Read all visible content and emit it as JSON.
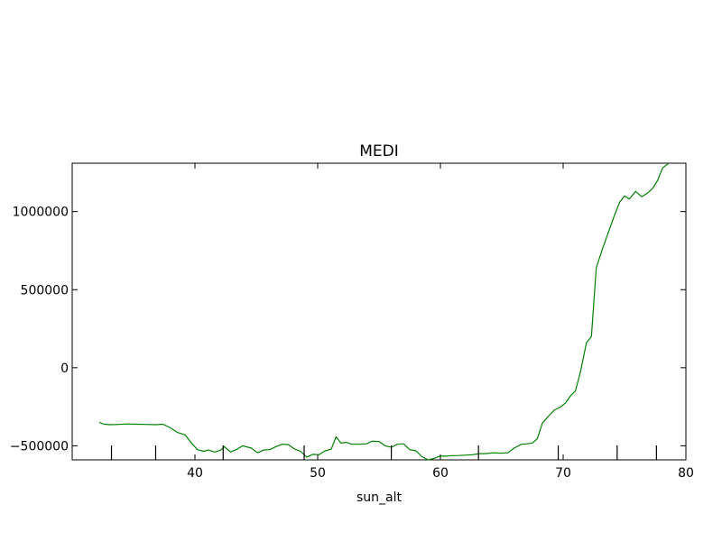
{
  "chart_data": {
    "type": "line",
    "title": "MEDI",
    "xlabel": "sun_alt",
    "ylabel": "",
    "xlim": [
      30,
      80
    ],
    "ylim": [
      -590000,
      1310000
    ],
    "x_ticks": [
      40,
      50,
      60,
      70,
      80
    ],
    "y_ticks": [
      -500000,
      0,
      500000,
      1000000
    ],
    "x_tick_labels": [
      "40",
      "50",
      "60",
      "70",
      "80"
    ],
    "y_tick_labels": [
      "−500000",
      "0",
      "500000",
      "1000000"
    ],
    "rug_x": [
      33.2,
      36.8,
      42.3,
      48.9,
      56.0,
      63.1,
      69.6,
      74.4,
      77.6
    ],
    "grid": false,
    "legend": "none",
    "series": [
      {
        "color": "#008000",
        "x": [
          32.2,
          32.6,
          33.1,
          33.8,
          34.5,
          35.3,
          36.0,
          36.8,
          37.4,
          38.0,
          38.6,
          39.2,
          39.7,
          40.2,
          40.7,
          41.1,
          41.6,
          42.1,
          42.4,
          42.9,
          43.4,
          43.9,
          44.6,
          45.1,
          45.6,
          46.1,
          46.6,
          47.1,
          47.6,
          48.1,
          48.6,
          49.1,
          49.6,
          50.1,
          50.6,
          51.1,
          51.5,
          51.9,
          52.3,
          52.8,
          53.4,
          54.0,
          54.4,
          55.0,
          55.5,
          56.0,
          56.5,
          57.0,
          57.5,
          58.0,
          58.5,
          59.0,
          59.5,
          60.0,
          60.4,
          60.9,
          61.5,
          62.0,
          62.6,
          63.2,
          63.7,
          64.3,
          64.9,
          65.5,
          66.0,
          66.6,
          67.1,
          67.5,
          67.9,
          68.3,
          68.8,
          69.3,
          69.8,
          70.2,
          70.6,
          71.0,
          71.4,
          71.9,
          72.3,
          72.7,
          73.2,
          73.7,
          74.2,
          74.6,
          75.0,
          75.4,
          75.9,
          76.4,
          76.9,
          77.3,
          77.7,
          78.1,
          78.6
        ],
        "y": [
          -350000,
          -362000,
          -365000,
          -363000,
          -360000,
          -362000,
          -363000,
          -365000,
          -362000,
          -385000,
          -415000,
          -430000,
          -480000,
          -525000,
          -535000,
          -527000,
          -540000,
          -528000,
          -505000,
          -540000,
          -523000,
          -500000,
          -515000,
          -545000,
          -527000,
          -525000,
          -505000,
          -490000,
          -492000,
          -520000,
          -535000,
          -572000,
          -555000,
          -557000,
          -532000,
          -522000,
          -442000,
          -483000,
          -478000,
          -490000,
          -490000,
          -487000,
          -471000,
          -472000,
          -500000,
          -510000,
          -490000,
          -487000,
          -525000,
          -532000,
          -570000,
          -590000,
          -580000,
          -565000,
          -567000,
          -563000,
          -562000,
          -560000,
          -557000,
          -550000,
          -550000,
          -545000,
          -547000,
          -545000,
          -515000,
          -490000,
          -487000,
          -482000,
          -455000,
          -355000,
          -310000,
          -270000,
          -250000,
          -225000,
          -180000,
          -148000,
          -30000,
          160000,
          200000,
          640000,
          760000,
          870000,
          980000,
          1060000,
          1100000,
          1080000,
          1130000,
          1095000,
          1120000,
          1150000,
          1200000,
          1280000,
          1310000
        ]
      }
    ]
  }
}
